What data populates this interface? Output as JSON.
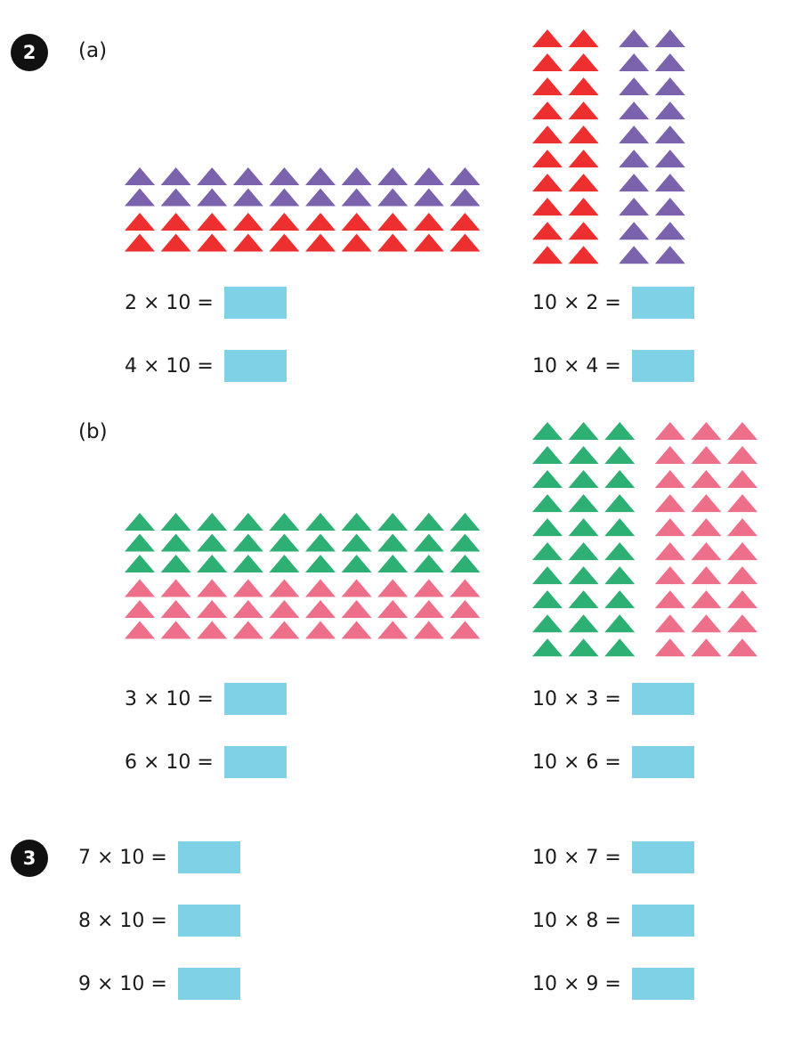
{
  "colors": {
    "purple": "#7a62ad",
    "red": "#ee2f2f",
    "green": "#2eaf74",
    "pink": "#ee6f8a",
    "answer_box": "#7fd1e6",
    "number_badge": "#111111"
  },
  "questions": [
    {
      "number": "2",
      "parts": [
        {
          "label": "(a)",
          "left_group": {
            "rows": [
              {
                "count": 10,
                "color": "purple"
              },
              {
                "count": 10,
                "color": "purple"
              },
              {
                "count": 10,
                "color": "red"
              },
              {
                "count": 10,
                "color": "red"
              }
            ]
          },
          "right_group": {
            "columns": [
              {
                "count": 10,
                "color": "red"
              },
              {
                "count": 10,
                "color": "red"
              },
              {
                "count": 10,
                "color": "purple"
              },
              {
                "count": 10,
                "color": "purple"
              }
            ]
          },
          "equations_left": [
            "2 × 10 =",
            "4 × 10 ="
          ],
          "equations_right": [
            "10 × 2 =",
            "10 × 4 ="
          ]
        },
        {
          "label": "(b)",
          "left_group": {
            "rows": [
              {
                "count": 10,
                "color": "green"
              },
              {
                "count": 10,
                "color": "green"
              },
              {
                "count": 10,
                "color": "green"
              },
              {
                "count": 10,
                "color": "pink"
              },
              {
                "count": 10,
                "color": "pink"
              },
              {
                "count": 10,
                "color": "pink"
              }
            ]
          },
          "right_group": {
            "columns": [
              {
                "count": 10,
                "color": "green"
              },
              {
                "count": 10,
                "color": "green"
              },
              {
                "count": 10,
                "color": "green"
              },
              {
                "count": 10,
                "color": "pink"
              },
              {
                "count": 10,
                "color": "pink"
              },
              {
                "count": 10,
                "color": "pink"
              }
            ]
          },
          "equations_left": [
            "3 × 10 =",
            "6 × 10 ="
          ],
          "equations_right": [
            "10 × 3 =",
            "10 × 6 ="
          ]
        }
      ]
    },
    {
      "number": "3",
      "equations_left": [
        "7 × 10 =",
        "8 × 10 =",
        "9 × 10 ="
      ],
      "equations_right": [
        "10 × 7 =",
        "10 × 8 =",
        "10 × 9 ="
      ]
    }
  ]
}
